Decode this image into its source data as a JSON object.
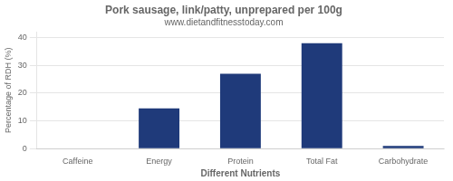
{
  "chart_data": {
    "type": "bar",
    "title": "Pork sausage, link/patty, unprepared per 100g",
    "subtitle": "www.dietandfitnesstoday.com",
    "xlabel": "Different Nutrients",
    "ylabel": "Percentage of RDH (%)",
    "categories": [
      "Caffeine",
      "Energy",
      "Protein",
      "Total Fat",
      "Carbohydrate"
    ],
    "values": [
      0,
      14.5,
      27,
      38,
      1
    ],
    "color": "#1F3A7A",
    "ylim": [
      0,
      42
    ],
    "yticks": [
      0,
      10,
      20,
      30,
      40
    ],
    "grid": true
  }
}
